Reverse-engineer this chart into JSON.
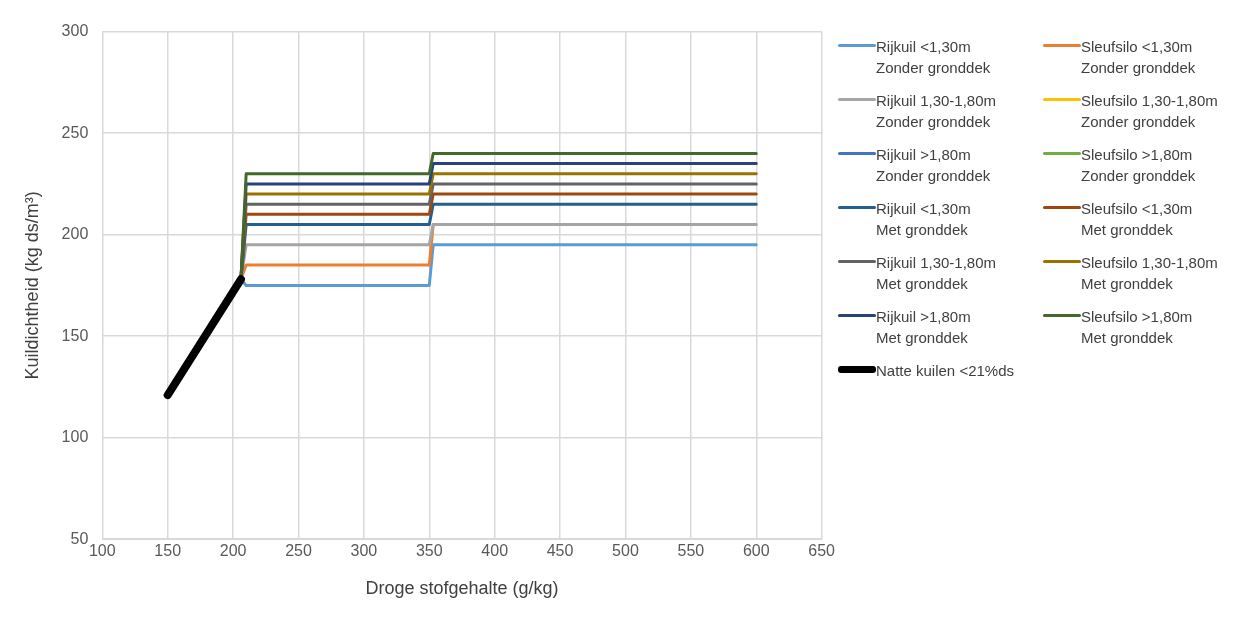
{
  "chart_data": {
    "type": "line",
    "xlabel": "Droge stofgehalte (g/kg)",
    "ylabel": "Kuildichtheid (kg ds/m³)",
    "xlim": [
      100,
      650
    ],
    "xticks": [
      100,
      150,
      200,
      250,
      300,
      350,
      400,
      450,
      500,
      550,
      600,
      650
    ],
    "ylim": [
      50,
      300
    ],
    "yticks": [
      50,
      100,
      150,
      200,
      250,
      300
    ],
    "grid": true,
    "legend": "right",
    "marker": "none",
    "line_style": "solid",
    "series": [
      {
        "name": "Rijkuil <1,30m\nZonder gronddek",
        "color": "#5b9bd5",
        "x": [
          206,
          210,
          350,
          353,
          600
        ],
        "values": [
          178,
          175,
          175,
          195,
          195
        ]
      },
      {
        "name": "Sleufsilo <1,30m\nZonder gronddek",
        "color": "#ed7d31",
        "x": [
          206,
          210,
          350,
          353
        ],
        "values": [
          178,
          185,
          185,
          205
        ]
      },
      {
        "name": "Rijkuil 1,30-1,80m\nZonder gronddek",
        "color": "#a5a5a5",
        "x": [
          206,
          210,
          350,
          353,
          600
        ],
        "values": [
          178,
          195,
          195,
          205,
          205
        ]
      },
      {
        "name": "Sleufsilo 1,30-1,80m\nZonder gronddek",
        "color": "#ffc000"
      },
      {
        "name": "Rijkuil >1,80m\nZonder gronddek",
        "color": "#4472c4"
      },
      {
        "name": "Sleufsilo >1,80m\nZonder gronddek",
        "color": "#70ad47"
      },
      {
        "name": "Rijkuil <1,30m\nMet gronddek",
        "color": "#255e91",
        "x": [
          206,
          210,
          350,
          353,
          600
        ],
        "values": [
          178,
          205,
          205,
          215,
          215
        ]
      },
      {
        "name": "Sleufsilo <1,30m\nMet gronddek",
        "color": "#9e480e",
        "x": [
          206,
          210,
          350,
          353,
          600
        ],
        "values": [
          178,
          210,
          210,
          220,
          220
        ]
      },
      {
        "name": "Rijkuil 1,30-1,80m\nMet gronddek",
        "color": "#636363",
        "x": [
          206,
          210,
          350,
          353,
          600
        ],
        "values": [
          178,
          215,
          215,
          225,
          225
        ]
      },
      {
        "name": "Sleufsilo 1,30-1,80m\nMet gronddek",
        "color": "#997300",
        "x": [
          206,
          210,
          350,
          353,
          600
        ],
        "values": [
          178,
          220,
          220,
          230,
          230
        ]
      },
      {
        "name": "Rijkuil >1,80m\nMet gronddek",
        "color": "#264478",
        "x": [
          206,
          210,
          350,
          353,
          600
        ],
        "values": [
          178,
          225,
          225,
          235,
          235
        ]
      },
      {
        "name": "Sleufsilo >1,80m\nMet gronddek",
        "color": "#43682b",
        "x": [
          206,
          210,
          350,
          353,
          600
        ],
        "values": [
          178,
          230,
          230,
          240,
          240
        ]
      },
      {
        "name": "Natte kuilen <21%ds",
        "color": "#000000",
        "x": [
          150,
          206
        ],
        "values": [
          121,
          178
        ]
      }
    ]
  }
}
